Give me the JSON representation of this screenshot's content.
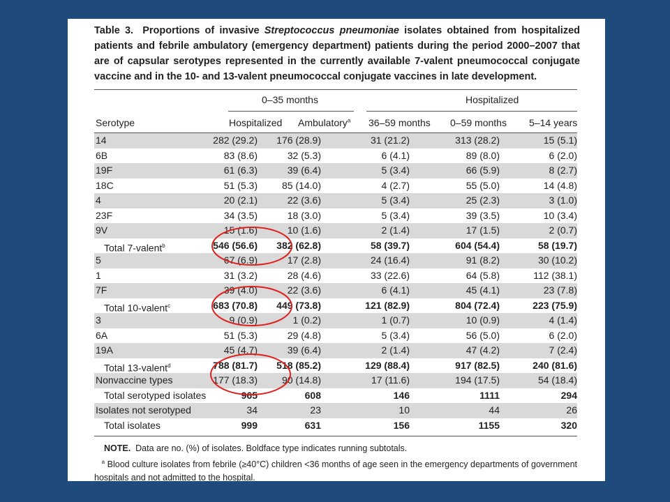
{
  "table": {
    "label": "Table 3.",
    "title_before": "Proportions of invasive",
    "title_italic": "Streptococcus pneumoniae",
    "title_after": "isolates obtained from hospitalized patients and febrile ambulatory (emergency department) patients during the period 2000–2007 that are of capsular serotypes represented in the currently available 7-valent pneumococcal conjugate vaccine and in the 10- and 13-valent pneumococcal conjugate vaccines in late development.",
    "group_headers": [
      "0–35 months",
      "Hospitalized"
    ],
    "columns": [
      "Serotype",
      "Hospitalized",
      "Ambulatory",
      "36–59 months",
      "0–59 months",
      "5–14 years"
    ],
    "ambulatory_footnote_mark": "a",
    "rows": [
      {
        "label": "14",
        "sup": "",
        "values": [
          "282 (29.2)",
          "176 (28.9)",
          "31 (21.2)",
          "313 (28.2)",
          "15 (5.1)"
        ]
      },
      {
        "label": "6B",
        "sup": "",
        "values": [
          "83 (8.6)",
          "32 (5.3)",
          "6 (4.1)",
          "89 (8.0)",
          "6 (2.0)"
        ]
      },
      {
        "label": "19F",
        "sup": "",
        "values": [
          "61 (6.3)",
          "39 (6.4)",
          "5 (3.4)",
          "66 (5.9)",
          "8 (2.7)"
        ]
      },
      {
        "label": "18C",
        "sup": "",
        "values": [
          "51 (5.3)",
          "85 (14.0)",
          "4 (2.7)",
          "55 (5.0)",
          "14 (4.8)"
        ]
      },
      {
        "label": "4",
        "sup": "",
        "values": [
          "20 (2.1)",
          "22 (3.6)",
          "5 (3.4)",
          "25 (2.3)",
          "3 (1.0)"
        ]
      },
      {
        "label": "23F",
        "sup": "",
        "values": [
          "34 (3.5)",
          "18 (3.0)",
          "5 (3.4)",
          "39 (3.5)",
          "10 (3.4)"
        ]
      },
      {
        "label": "9V",
        "sup": "",
        "values": [
          "15 (1.6)",
          "10 (1.6)",
          "2 (1.4)",
          "17 (1.5)",
          "2 (0.7)"
        ]
      },
      {
        "label": "Total 7-valent",
        "sup": "b",
        "values": [
          "546 (56.6)",
          "382 (62.8)",
          "58 (39.7)",
          "604 (54.4)",
          "58 (19.7)"
        ]
      },
      {
        "label": "5",
        "sup": "",
        "values": [
          "67 (6.9)",
          "17 (2.8)",
          "24 (16.4)",
          "91 (8.2)",
          "30 (10.2)"
        ]
      },
      {
        "label": "1",
        "sup": "",
        "values": [
          "31 (3.2)",
          "28 (4.6)",
          "33 (22.6)",
          "64 (5.8)",
          "112 (38.1)"
        ]
      },
      {
        "label": "7F",
        "sup": "",
        "values": [
          "39 (4.0)",
          "22 (3.6)",
          "6 (4.1)",
          "45 (4.1)",
          "23 (7.8)"
        ]
      },
      {
        "label": "Total 10-valent",
        "sup": "c",
        "values": [
          "683 (70.8)",
          "449 (73.8)",
          "121 (82.9)",
          "804 (72.4)",
          "223 (75.9)"
        ]
      },
      {
        "label": "3",
        "sup": "",
        "values": [
          "9 (0.9)",
          "1 (0.2)",
          "1 (0.7)",
          "10 (0.9)",
          "4 (1.4)"
        ]
      },
      {
        "label": "6A",
        "sup": "",
        "values": [
          "51 (5.3)",
          "29 (4.8)",
          "5 (3.4)",
          "56 (5.0)",
          "6 (2.0)"
        ]
      },
      {
        "label": "19A",
        "sup": "",
        "values": [
          "45 (4.7)",
          "39 (6.4)",
          "2 (1.4)",
          "47 (4.2)",
          "7 (2.4)"
        ]
      },
      {
        "label": "Total 13-valent",
        "sup": "d",
        "values": [
          "788 (81.7)",
          "518 (85.2)",
          "129 (88.4)",
          "917 (82.5)",
          "240 (81.6)"
        ]
      },
      {
        "label": "Nonvaccine types",
        "sup": "",
        "values": [
          "177 (18.3)",
          "90 (14.8)",
          "17 (11.6)",
          "194 (17.5)",
          "54 (18.4)"
        ]
      },
      {
        "label": "Total serotyped isolates",
        "sup": "",
        "values": [
          "965",
          "608",
          "146",
          "1111",
          "294"
        ]
      },
      {
        "label": "Isolates not serotyped",
        "sup": "",
        "values": [
          "34",
          "23",
          "10",
          "44",
          "26"
        ]
      },
      {
        "label": "Total isolates",
        "sup": "",
        "values": [
          "999",
          "631",
          "156",
          "1155",
          "320"
        ]
      }
    ],
    "note_label": "NOTE.",
    "note_text": "Data are no. (%) of isolates. Boldface type indicates running subtotals.",
    "footnote_mark": "a",
    "footnote_text": "Blood culture isolates from febrile (≥40°C) children <36 months of age seen in the emergency departments of government hospitals and not admitted to the hospital."
  },
  "colors": {
    "background": "#1f4a7c",
    "row_shade": "#d9d9d9",
    "annotation": "#e0201c"
  }
}
